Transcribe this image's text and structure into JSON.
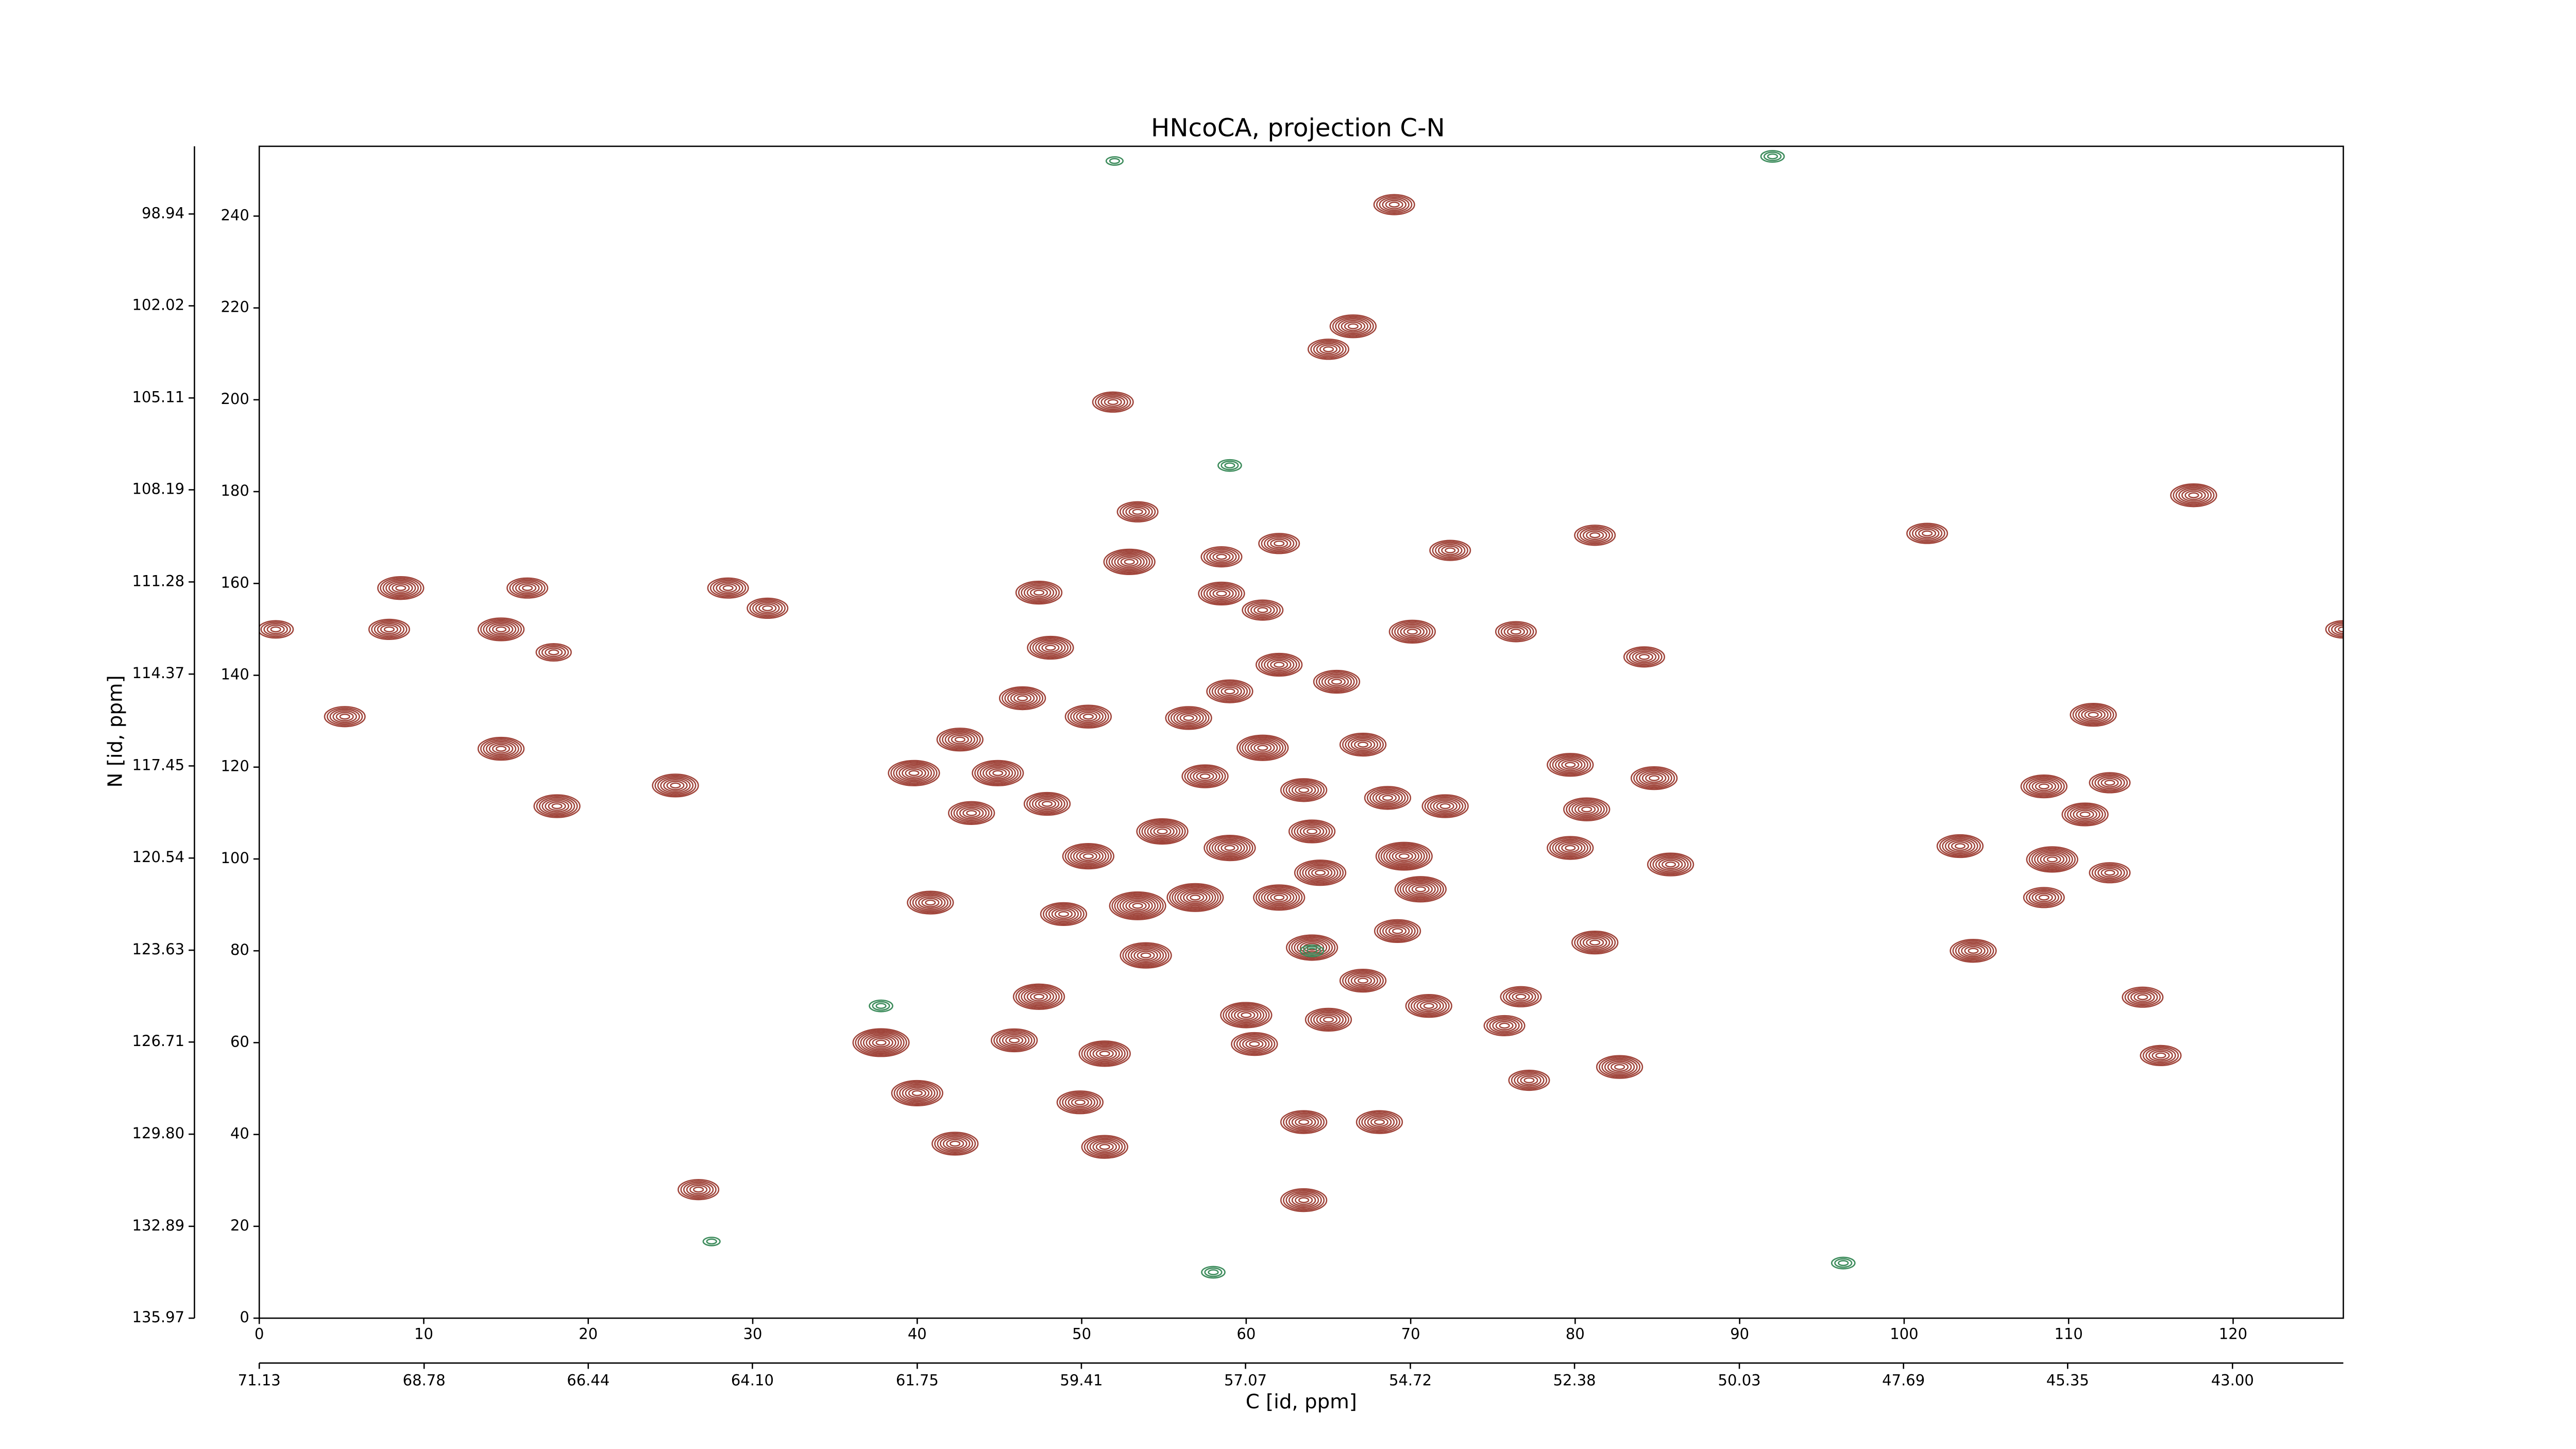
{
  "chart_data": {
    "type": "contour",
    "title": "HNcoCA, projection C-N",
    "xlabel": "C [id, ppm]",
    "ylabel": "N [id, ppm]",
    "xlim": [
      0,
      126.7
    ],
    "xticks": [
      0,
      10,
      20,
      30,
      40,
      50,
      60,
      70,
      80,
      90,
      100,
      110,
      120
    ],
    "ylim": [
      0,
      255.2
    ],
    "yticks": [
      0,
      20,
      40,
      60,
      80,
      100,
      120,
      140,
      160,
      180,
      200,
      220,
      240
    ],
    "x2lim": [
      71.13,
      41.42
    ],
    "x2ticks": [
      71.13,
      68.78,
      66.44,
      {
        "value": 64.1,
        "label": "64.10"
      },
      61.75,
      59.41,
      57.07,
      54.72,
      52.38,
      50.03,
      47.69,
      45.35,
      {
        "value": 43,
        "label": "43.00"
      }
    ],
    "y2lim": [
      135.97,
      96.67
    ],
    "y2ticks": [
      135.97,
      132.89,
      {
        "value": 129.8,
        "label": "129.80"
      },
      126.71,
      123.63,
      120.54,
      117.45,
      114.37,
      111.28,
      108.19,
      105.11,
      102.02,
      98.94
    ],
    "positive_color": "#a0453b",
    "negative_color": "#3d8c5c",
    "peaks": [
      {
        "x": 8.6,
        "y": 159,
        "levels": 7
      },
      {
        "x": 16.3,
        "y": 159,
        "levels": 6
      },
      {
        "x": 7.9,
        "y": 150,
        "levels": 6
      },
      {
        "x": 14.7,
        "y": 150,
        "levels": 7
      },
      {
        "x": 17.9,
        "y": 145,
        "levels": 5
      },
      {
        "x": 1,
        "y": 150,
        "levels": 5
      },
      {
        "x": 5.2,
        "y": 131,
        "levels": 6
      },
      {
        "x": 14.7,
        "y": 124,
        "levels": 7
      },
      {
        "x": 18.1,
        "y": 111.5,
        "levels": 7
      },
      {
        "x": 25.3,
        "y": 116,
        "levels": 7
      },
      {
        "x": 28.5,
        "y": 159,
        "levels": 6
      },
      {
        "x": 30.9,
        "y": 154.6,
        "levels": 6
      },
      {
        "x": 26.7,
        "y": 28,
        "levels": 6
      },
      {
        "x": 42.3,
        "y": 38,
        "levels": 7
      },
      {
        "x": 40,
        "y": 49,
        "levels": 8
      },
      {
        "x": 37.8,
        "y": 60,
        "levels": 9
      },
      {
        "x": 40.8,
        "y": 90.5,
        "levels": 7
      },
      {
        "x": 39.8,
        "y": 118.7,
        "levels": 8
      },
      {
        "x": 42.6,
        "y": 126,
        "levels": 7
      },
      {
        "x": 44.9,
        "y": 118.7,
        "levels": 8
      },
      {
        "x": 43.3,
        "y": 110,
        "levels": 7
      },
      {
        "x": 51.9,
        "y": 199.5,
        "levels": 6
      },
      {
        "x": 53.4,
        "y": 175.6,
        "levels": 6
      },
      {
        "x": 52.9,
        "y": 164.7,
        "levels": 8
      },
      {
        "x": 47.4,
        "y": 158,
        "levels": 7
      },
      {
        "x": 48.1,
        "y": 146,
        "levels": 7
      },
      {
        "x": 46.4,
        "y": 135,
        "levels": 7
      },
      {
        "x": 50.4,
        "y": 131,
        "levels": 7
      },
      {
        "x": 47.9,
        "y": 112,
        "levels": 7
      },
      {
        "x": 50.4,
        "y": 100.6,
        "levels": 8
      },
      {
        "x": 48.9,
        "y": 88,
        "levels": 7
      },
      {
        "x": 53.4,
        "y": 89.8,
        "levels": 9
      },
      {
        "x": 53.9,
        "y": 79,
        "levels": 8
      },
      {
        "x": 47.4,
        "y": 70,
        "levels": 8
      },
      {
        "x": 45.9,
        "y": 60.5,
        "levels": 7
      },
      {
        "x": 51.4,
        "y": 57.6,
        "levels": 8
      },
      {
        "x": 49.9,
        "y": 47,
        "levels": 7
      },
      {
        "x": 51.4,
        "y": 37.3,
        "levels": 7
      },
      {
        "x": 56.9,
        "y": 91.6,
        "levels": 9
      },
      {
        "x": 54.9,
        "y": 106,
        "levels": 8
      },
      {
        "x": 59,
        "y": 102.4,
        "levels": 8
      },
      {
        "x": 57.5,
        "y": 118,
        "levels": 7
      },
      {
        "x": 56.5,
        "y": 130.7,
        "levels": 7
      },
      {
        "x": 59,
        "y": 136.5,
        "levels": 7
      },
      {
        "x": 58.5,
        "y": 157.8,
        "levels": 7
      },
      {
        "x": 61,
        "y": 154.2,
        "levels": 6
      },
      {
        "x": 58.5,
        "y": 165.8,
        "levels": 6
      },
      {
        "x": 62,
        "y": 168.7,
        "levels": 6
      },
      {
        "x": 62,
        "y": 142.3,
        "levels": 7
      },
      {
        "x": 61,
        "y": 124.2,
        "levels": 8
      },
      {
        "x": 63.5,
        "y": 115,
        "levels": 7
      },
      {
        "x": 62,
        "y": 91.6,
        "levels": 8
      },
      {
        "x": 64,
        "y": 80.7,
        "levels": 8
      },
      {
        "x": 64.5,
        "y": 97,
        "levels": 8
      },
      {
        "x": 64,
        "y": 106,
        "levels": 7
      },
      {
        "x": 65.5,
        "y": 138.6,
        "levels": 7
      },
      {
        "x": 67.1,
        "y": 124.9,
        "levels": 7
      },
      {
        "x": 68.6,
        "y": 113.3,
        "levels": 7
      },
      {
        "x": 69.6,
        "y": 100.6,
        "levels": 9
      },
      {
        "x": 70.6,
        "y": 93.4,
        "levels": 8
      },
      {
        "x": 69.2,
        "y": 84.3,
        "levels": 7
      },
      {
        "x": 67.1,
        "y": 73.5,
        "levels": 7
      },
      {
        "x": 60,
        "y": 66,
        "levels": 8
      },
      {
        "x": 60.5,
        "y": 59.7,
        "levels": 7
      },
      {
        "x": 65,
        "y": 65,
        "levels": 7
      },
      {
        "x": 63.5,
        "y": 42.7,
        "levels": 7
      },
      {
        "x": 68.1,
        "y": 42.7,
        "levels": 7
      },
      {
        "x": 63.5,
        "y": 25.7,
        "levels": 7
      },
      {
        "x": 65,
        "y": 211,
        "levels": 6
      },
      {
        "x": 66.5,
        "y": 216,
        "levels": 7
      },
      {
        "x": 69,
        "y": 242.5,
        "levels": 6
      },
      {
        "x": 72.4,
        "y": 167.2,
        "levels": 6
      },
      {
        "x": 72.1,
        "y": 111.5,
        "levels": 7
      },
      {
        "x": 70.1,
        "y": 149.5,
        "levels": 7
      },
      {
        "x": 76.4,
        "y": 149.5,
        "levels": 6
      },
      {
        "x": 71.1,
        "y": 68,
        "levels": 7
      },
      {
        "x": 76.7,
        "y": 70,
        "levels": 6
      },
      {
        "x": 75.7,
        "y": 63.7,
        "levels": 6
      },
      {
        "x": 77.2,
        "y": 51.8,
        "levels": 6
      },
      {
        "x": 82.7,
        "y": 54.7,
        "levels": 7
      },
      {
        "x": 81.2,
        "y": 81.8,
        "levels": 7
      },
      {
        "x": 79.7,
        "y": 120.5,
        "levels": 7
      },
      {
        "x": 84.8,
        "y": 117.6,
        "levels": 7
      },
      {
        "x": 80.7,
        "y": 110.8,
        "levels": 7
      },
      {
        "x": 79.7,
        "y": 102.4,
        "levels": 7
      },
      {
        "x": 85.8,
        "y": 98.8,
        "levels": 7
      },
      {
        "x": 84.2,
        "y": 144,
        "levels": 6
      },
      {
        "x": 81.2,
        "y": 170.5,
        "levels": 6
      },
      {
        "x": 101.4,
        "y": 170.9,
        "levels": 6
      },
      {
        "x": 103.4,
        "y": 102.8,
        "levels": 7
      },
      {
        "x": 104.2,
        "y": 80,
        "levels": 7
      },
      {
        "x": 108.5,
        "y": 115.8,
        "levels": 7
      },
      {
        "x": 111,
        "y": 109.7,
        "levels": 7
      },
      {
        "x": 112.5,
        "y": 116.6,
        "levels": 6
      },
      {
        "x": 111.5,
        "y": 131.4,
        "levels": 7
      },
      {
        "x": 109,
        "y": 99.9,
        "levels": 8
      },
      {
        "x": 108.5,
        "y": 91.6,
        "levels": 6
      },
      {
        "x": 112.5,
        "y": 97,
        "levels": 6
      },
      {
        "x": 114.5,
        "y": 69.9,
        "levels": 6
      },
      {
        "x": 115.6,
        "y": 57.2,
        "levels": 6
      },
      {
        "x": 117.6,
        "y": 179.2,
        "levels": 7
      },
      {
        "x": 126.7,
        "y": 150,
        "levels": 5
      }
    ],
    "negative_peaks": [
      {
        "x": 64,
        "y": 80,
        "levels": 3
      },
      {
        "x": 37.8,
        "y": 68,
        "levels": 3
      },
      {
        "x": 27.5,
        "y": 16.7,
        "levels": 2
      },
      {
        "x": 96.3,
        "y": 12,
        "levels": 3
      },
      {
        "x": 59,
        "y": 185.7,
        "levels": 3
      },
      {
        "x": 58,
        "y": 10,
        "levels": 3
      },
      {
        "x": 52,
        "y": 252,
        "levels": 2
      },
      {
        "x": 92,
        "y": 253,
        "levels": 3
      }
    ]
  }
}
